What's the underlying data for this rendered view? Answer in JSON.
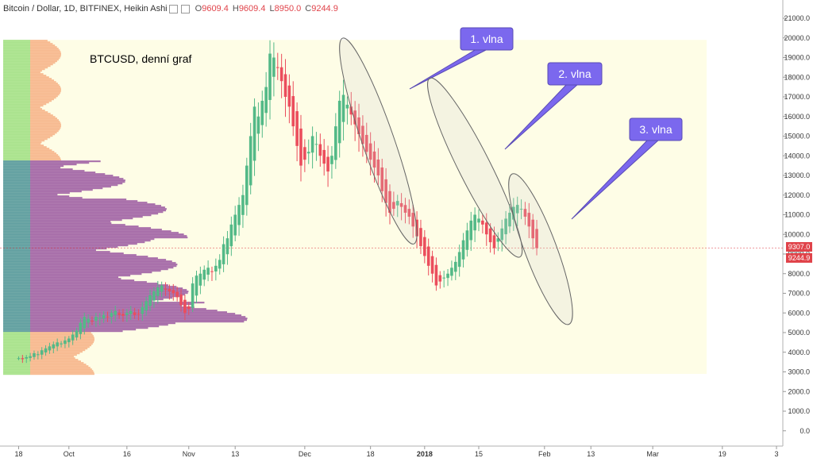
{
  "header": {
    "symbol": "Bitcoin / Dollar, 1D, BITFINEX, Heikin Ashi",
    "open_label": "O",
    "open": "9609.4",
    "high_label": "H",
    "high": "9609.4",
    "low_label": "L",
    "low": "8950.0",
    "close_label": "C",
    "close": "9244.9"
  },
  "price_tags": {
    "upper": "9307.0",
    "lower": "9244.9"
  },
  "chart_data": {
    "type": "candlestick",
    "title": "BTCUSD, denní graf",
    "series_name": "Bitcoin / Dollar, 1D, BITFINEX, Heikin Ashi",
    "ylim": [
      -200,
      21400
    ],
    "y_ticks": [
      "0.0",
      "1000.0",
      "2000.0",
      "3000.0",
      "4000.0",
      "5000.0",
      "6000.0",
      "7000.0",
      "8000.0",
      "9000.0",
      "10000.0",
      "11000.0",
      "12000.0",
      "13000.0",
      "14000.0",
      "15000.0",
      "16000.0",
      "17000.0",
      "18000.0",
      "19000.0",
      "20000.0",
      "21000.0"
    ],
    "x_ticks": [
      {
        "label": "18",
        "day": 0
      },
      {
        "label": "Oct",
        "day": 13
      },
      {
        "label": "16",
        "day": 28
      },
      {
        "label": "Nov",
        "day": 44
      },
      {
        "label": "13",
        "day": 56
      },
      {
        "label": "Dec",
        "day": 74
      },
      {
        "label": "18",
        "day": 91
      },
      {
        "label": "2018",
        "day": 105
      },
      {
        "label": "15",
        "day": 119
      },
      {
        "label": "Feb",
        "day": 136
      },
      {
        "label": "13",
        "day": 148
      },
      {
        "label": "Mar",
        "day": 164
      },
      {
        "label": "19",
        "day": 182
      },
      {
        "label": "3",
        "day": 196
      }
    ],
    "x_days": [
      -4,
      200
    ],
    "start_date": "2017-09-18",
    "closes": [
      3700,
      3650,
      3750,
      3800,
      3950,
      3900,
      4100,
      4200,
      4300,
      4400,
      4500,
      4450,
      4600,
      4700,
      4900,
      5100,
      5500,
      5800,
      5700,
      5600,
      5800,
      5750,
      5900,
      5800,
      6000,
      6100,
      5900,
      5850,
      6000,
      6100,
      5900,
      5950,
      6300,
      6600,
      6900,
      7100,
      7300,
      7400,
      7200,
      7100,
      7000,
      6800,
      6400,
      6000,
      6200,
      7500,
      7900,
      8000,
      8200,
      8300,
      8100,
      8400,
      8700,
      9500,
      9800,
      10500,
      11000,
      11500,
      12000,
      13500,
      15000,
      16500,
      16000,
      16800,
      17500,
      19200,
      19000,
      18500,
      17800,
      17000,
      16500,
      15500,
      14500,
      13500,
      13800,
      14200,
      15000,
      14600,
      14000,
      13600,
      13200,
      14000,
      15500,
      16800,
      17100,
      16600,
      16100,
      15600,
      15100,
      14600,
      14200,
      13800,
      13400,
      13000,
      12200,
      11600,
      11100,
      11300,
      11700,
      11400,
      11100,
      10900,
      10400,
      9900,
      9400,
      8900,
      8400,
      8000,
      7400,
      7600,
      7800,
      8000,
      8300,
      8600,
      9100,
      9700,
      10200,
      10700,
      11000,
      10800,
      10500,
      10000,
      9600,
      9300,
      9800,
      10300,
      10800,
      11100,
      11400,
      11500,
      11300,
      10900,
      10400,
      9800,
      9300
    ],
    "volume_profile": {
      "value_area_range": [
        5100,
        13800
      ],
      "price_range": [
        2900,
        19900
      ]
    },
    "annotations": [
      {
        "text": "1. vlna",
        "from_day": 85,
        "to_day": 101,
        "from_price": 19300,
        "to_price": 10200
      },
      {
        "text": "2. vlna",
        "from_day": 108,
        "to_day": 128,
        "from_price": 17300,
        "to_price": 9500
      },
      {
        "text": "3. vlna",
        "from_day": 129,
        "to_day": 141,
        "from_price": 12400,
        "to_price": 6100
      }
    ],
    "current_price_line": 9307.0,
    "grid": false,
    "legend": "none"
  }
}
